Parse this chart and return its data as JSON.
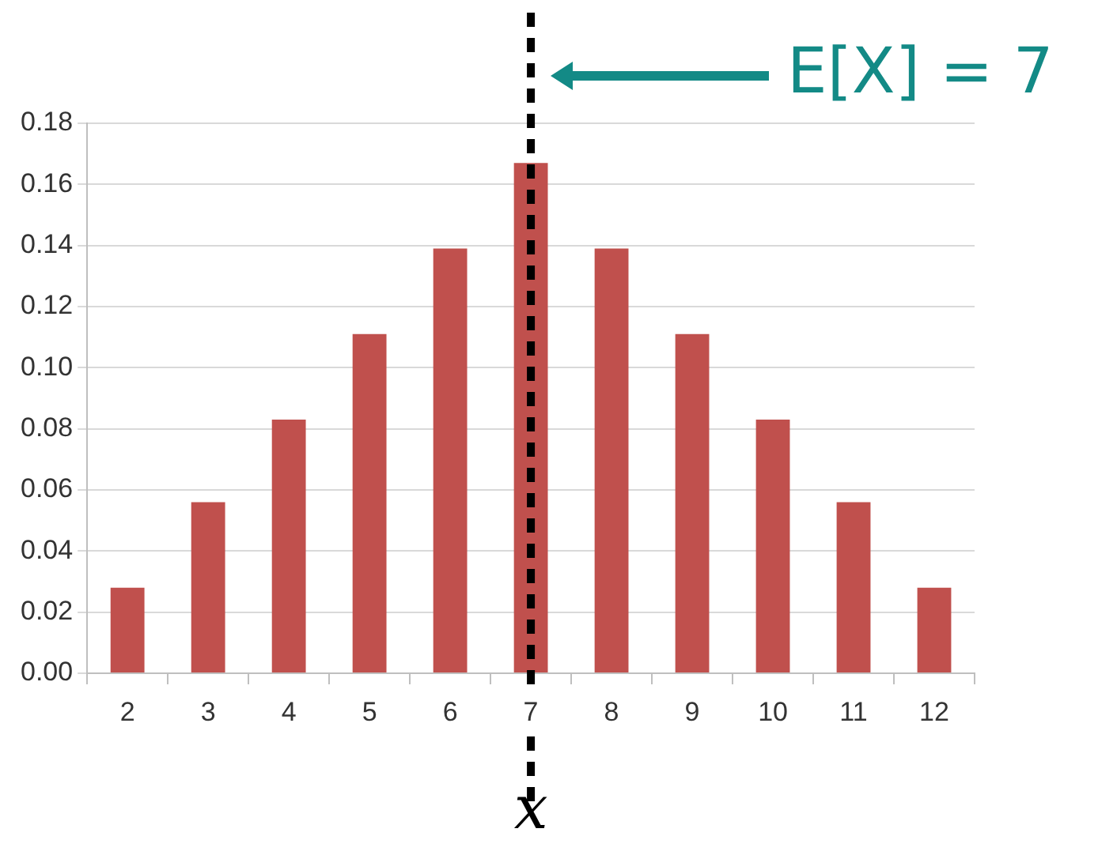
{
  "chart_data": {
    "type": "bar",
    "xlabel": "x",
    "categories": [
      "2",
      "3",
      "4",
      "5",
      "6",
      "7",
      "8",
      "9",
      "10",
      "11",
      "12"
    ],
    "values": [
      0.028,
      0.056,
      0.083,
      0.111,
      0.139,
      0.167,
      0.139,
      0.111,
      0.083,
      0.056,
      0.028
    ],
    "color": "#c0504d",
    "ylim": [
      0,
      0.18
    ],
    "yticks": [
      {
        "value": 0,
        "label": "0.00"
      },
      {
        "value": 0.02,
        "label": "0.02"
      },
      {
        "value": 0.04,
        "label": "0.04"
      },
      {
        "value": 0.06,
        "label": "0.06"
      },
      {
        "value": 0.08,
        "label": "0.08"
      },
      {
        "value": 0.1,
        "label": "0.10"
      },
      {
        "value": 0.12,
        "label": "0.12"
      },
      {
        "value": 0.14,
        "label": "0.14"
      },
      {
        "value": 0.16,
        "label": "0.16"
      },
      {
        "value": 0.18,
        "label": "0.18"
      }
    ],
    "grid": "y",
    "legend": false,
    "ref_lines": [
      {
        "axis": "x",
        "value": "7",
        "color": "#000000",
        "line_style": "dashed"
      }
    ],
    "annotations": [
      "E[X] = 7"
    ]
  }
}
